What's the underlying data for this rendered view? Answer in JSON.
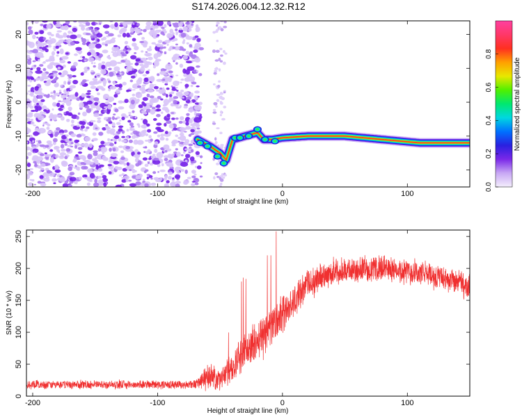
{
  "chart_data": [
    {
      "type": "heatmap",
      "title": "S174.2026.004.12.32.R12",
      "xlabel": "Height of straight line (km)",
      "ylabel": "Frequency (Hz)",
      "xlim": [
        -205,
        150
      ],
      "ylim": [
        -25,
        24
      ],
      "xticks": [
        -200,
        -100,
        0,
        100
      ],
      "yticks": [
        20,
        10,
        0,
        -10,
        -20
      ],
      "colorbar": {
        "label": "Normalized spectral amplitude",
        "range": [
          0.0,
          1.0
        ],
        "ticks": [
          "0.0",
          "0.2",
          "0.4",
          "0.6",
          "0.8"
        ],
        "tick_values": [
          0.0,
          0.2,
          0.4,
          0.6,
          0.8
        ],
        "colors": [
          "#f4eefc",
          "#c8a8f4",
          "#7a28e8",
          "#2a20e0",
          "#0070ff",
          "#00d8e0",
          "#00e870",
          "#50f000",
          "#e8e800",
          "#ffa000",
          "#ff3020",
          "#ff3868",
          "#ff40a0"
        ]
      },
      "features": {
        "noise_region_x": [
          -205,
          -65
        ],
        "sparse_noise_strip_x": [
          -55,
          -45
        ],
        "signal_track": [
          {
            "x": -68,
            "y": -11
          },
          {
            "x": -58,
            "y": -13
          },
          {
            "x": -50,
            "y": -15
          },
          {
            "x": -45,
            "y": -17
          },
          {
            "x": -40,
            "y": -11
          },
          {
            "x": -30,
            "y": -10
          },
          {
            "x": -20,
            "y": -9
          },
          {
            "x": -15,
            "y": -11
          },
          {
            "x": -8,
            "y": -11
          },
          {
            "x": 0,
            "y": -10.5
          },
          {
            "x": 20,
            "y": -10
          },
          {
            "x": 50,
            "y": -10
          },
          {
            "x": 80,
            "y": -11
          },
          {
            "x": 110,
            "y": -12
          },
          {
            "x": 150,
            "y": -12
          }
        ]
      }
    },
    {
      "type": "line",
      "xlabel": "Height of straight line (km)",
      "ylabel": "SNR (10 * v/v)",
      "xlim": [
        -205,
        150
      ],
      "ylim": [
        0,
        260
      ],
      "xticks": [
        -200,
        -100,
        0,
        100
      ],
      "yticks": [
        0,
        50,
        100,
        150,
        200,
        250
      ],
      "series": [
        {
          "name": "SNR",
          "color": "#f03030",
          "envelope": [
            {
              "x": -205,
              "mean": 18,
              "spread": 10
            },
            {
              "x": -70,
              "mean": 18,
              "spread": 10
            },
            {
              "x": -60,
              "mean": 30,
              "spread": 30
            },
            {
              "x": -50,
              "mean": 25,
              "spread": 25
            },
            {
              "x": -42,
              "mean": 40,
              "spread": 35
            },
            {
              "x": -30,
              "mean": 70,
              "spread": 45
            },
            {
              "x": -15,
              "mean": 95,
              "spread": 50
            },
            {
              "x": 0,
              "mean": 130,
              "spread": 45
            },
            {
              "x": 20,
              "mean": 175,
              "spread": 35
            },
            {
              "x": 40,
              "mean": 195,
              "spread": 30
            },
            {
              "x": 80,
              "mean": 200,
              "spread": 30
            },
            {
              "x": 120,
              "mean": 190,
              "spread": 30
            },
            {
              "x": 150,
              "mean": 170,
              "spread": 30
            }
          ]
        }
      ]
    }
  ]
}
